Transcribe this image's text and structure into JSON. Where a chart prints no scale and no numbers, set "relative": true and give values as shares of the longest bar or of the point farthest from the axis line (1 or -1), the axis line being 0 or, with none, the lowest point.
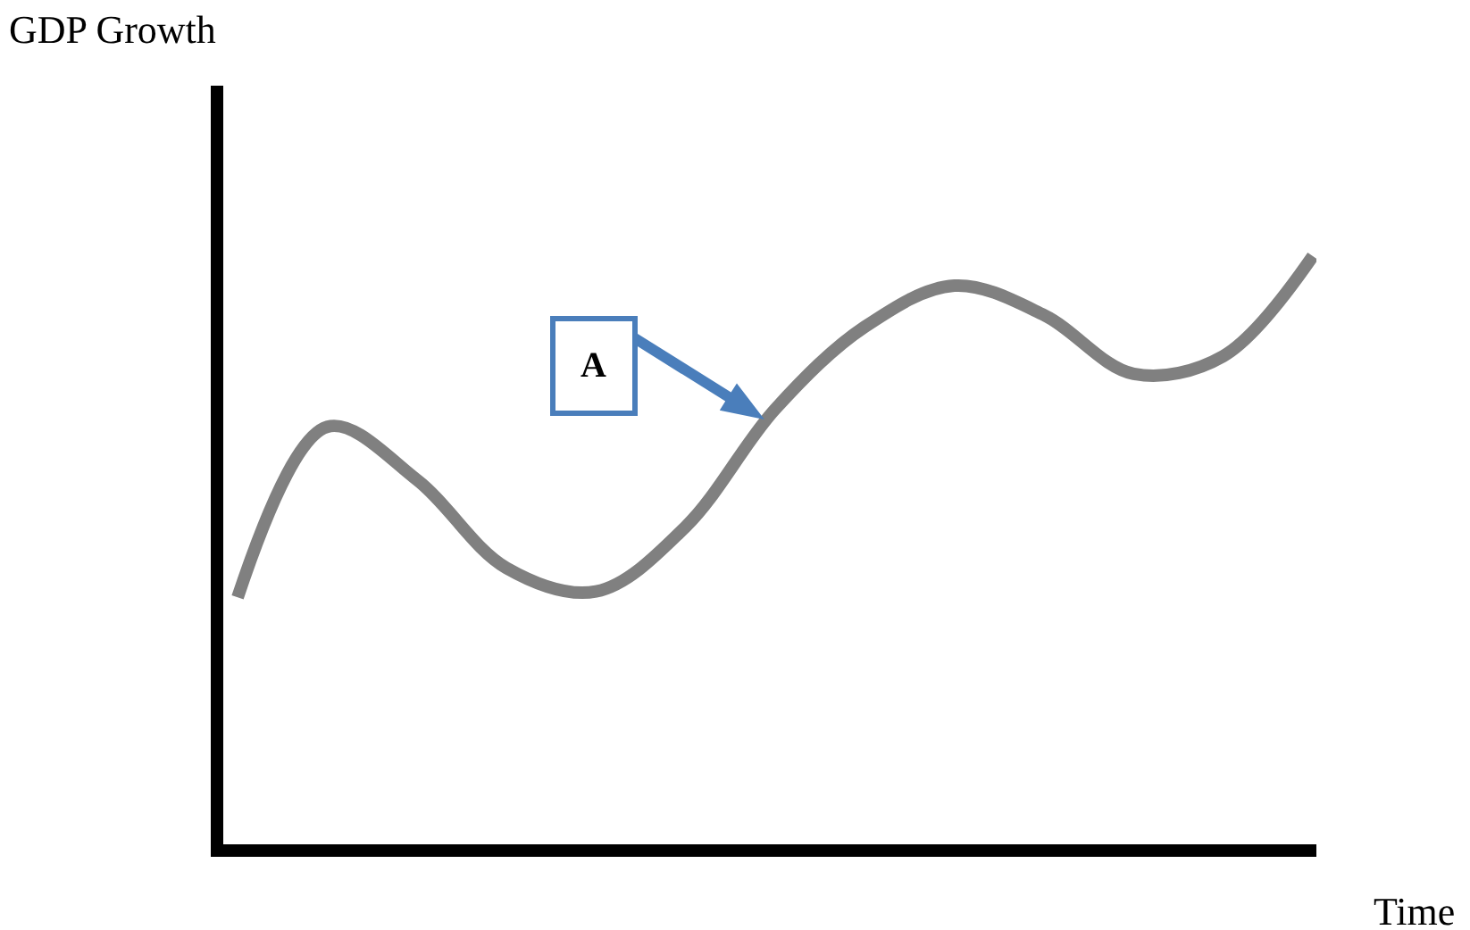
{
  "chart_data": {
    "type": "line",
    "relative": true,
    "xlabel": "Time",
    "categories": [
      null,
      null,
      null,
      null,
      null,
      null,
      null,
      null,
      null,
      null,
      null,
      null,
      null
    ],
    "series": [
      {
        "color": "#808080",
        "values": [
          0.42,
          0.71,
          0.62,
          0.47,
          0.43,
          0.54,
          0.74,
          0.88,
          0.95,
          0.9,
          0.8,
          0.83,
          1.0
        ]
      }
    ],
    "annotations": [
      "GDP Growth",
      "A"
    ]
  }
}
